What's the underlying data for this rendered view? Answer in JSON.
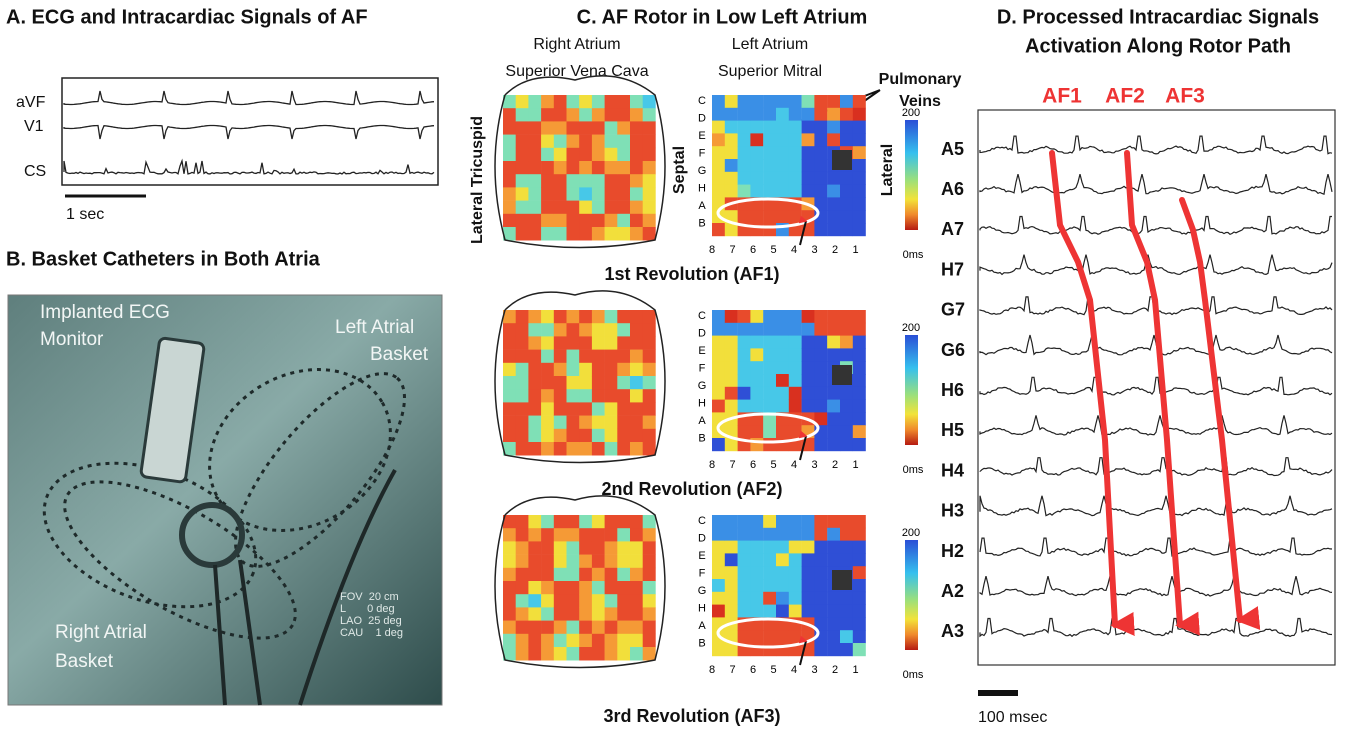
{
  "panel_a": {
    "title": "A. ECG and Intracardiac Signals of AF",
    "leads": [
      "aVF",
      "V1",
      "CS"
    ],
    "scale": "1 sec"
  },
  "panel_b": {
    "title": "B. Basket Catheters in Both Atria",
    "monitor": [
      "Implanted ECG",
      "Monitor"
    ],
    "left_basket": [
      "Left Atrial",
      "Basket"
    ],
    "right_basket": [
      "Right Atrial",
      "Basket"
    ],
    "info": [
      "FOV  20 cm",
      "L       0 deg",
      "LAO  25 deg",
      "CAU    1 deg"
    ]
  },
  "panel_c": {
    "title": "C. AF Rotor in Low Left Atrium",
    "right_atrium": "Right Atrium",
    "svc": "Superior Vena Cava",
    "left_atrium": "Left Atrium",
    "mitral": "Superior Mitral",
    "pulmonary_veins": [
      "Pulmonary",
      "Veins"
    ],
    "lateral_tricuspid": "Lateral Tricuspid",
    "septal": "Septal",
    "lateral": "Lateral",
    "rows": [
      "C",
      "D",
      "E",
      "F",
      "G",
      "H",
      "A",
      "B"
    ],
    "columns": [
      "8",
      "7",
      "6",
      "5",
      "4",
      "3",
      "2",
      "1"
    ],
    "colorbar": {
      "max": "200",
      "min": "0ms"
    },
    "revolutions": [
      "1st Revolution (AF1)",
      "2nd Revolution (AF2)",
      "3rd Revolution (AF3)"
    ]
  },
  "panel_d": {
    "title": [
      "D. Processed Intracardiac Signals",
      "Activation Along Rotor Path"
    ],
    "paths": [
      "AF1",
      "AF2",
      "AF3"
    ],
    "channels": [
      "A5",
      "A6",
      "A7",
      "H7",
      "G7",
      "G6",
      "H6",
      "H5",
      "H4",
      "H3",
      "H2",
      "A2",
      "A3"
    ],
    "scale": "100 msec"
  }
}
